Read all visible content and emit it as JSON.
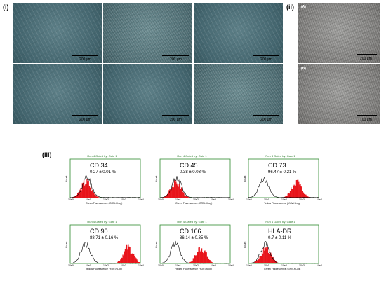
{
  "panel_labels": {
    "i": "(i)",
    "ii": "(ii)",
    "iii": "(iii)"
  },
  "scale_bar_label": "200 µm",
  "panel_ii_sublabels": {
    "a": "(A)",
    "b": "(B)"
  },
  "panel_ii_scale_labels": {
    "a": "200 µm",
    "b": "100 µm"
  },
  "flow_common": {
    "run_label": "Run 4  Gated by: Gate 1",
    "y_label": "Count",
    "x_ticks": [
      "10e0",
      "10e1",
      "10e2",
      "10e3",
      "10e4"
    ]
  },
  "histograms": [
    {
      "marker": "CD 34",
      "value": "0.27 ± 0.01 %",
      "x_label": "Green Fluorescence (GRN-HLog)",
      "red_peak": 0.22,
      "black_peak": 0.24
    },
    {
      "marker": "CD 45",
      "value": "0.38 ± 0.03 %",
      "x_label": "Green Fluorescence (GRN-HLog)",
      "red_peak": 0.22,
      "black_peak": 0.24
    },
    {
      "marker": "CD 73",
      "value": "96.47 ± 0.21 %",
      "x_label": "Yellow Fluorescence (YLW-HLog)",
      "red_peak": 0.68,
      "black_peak": 0.22
    },
    {
      "marker": "CD 90",
      "value": "88.71 ± 0.16 %",
      "x_label": "Yellow Fluorescence (YLW-HLog)",
      "red_peak": 0.82,
      "black_peak": 0.22
    },
    {
      "marker": "CD 166",
      "value": "86.14 ± 0.35 %",
      "x_label": "Yellow Fluorescence (YLW-HLog)",
      "red_peak": 0.58,
      "black_peak": 0.22
    },
    {
      "marker": "HLA-DR",
      "value": "0.7 ± 0.11 %",
      "x_label": "Green Fluorescence (GRN-HLog)",
      "red_peak": 0.24,
      "black_peak": 0.24
    }
  ],
  "colors": {
    "histogram_fill": "#e8141b",
    "histogram_line": "#000000",
    "frame": "#2e8b2e"
  }
}
